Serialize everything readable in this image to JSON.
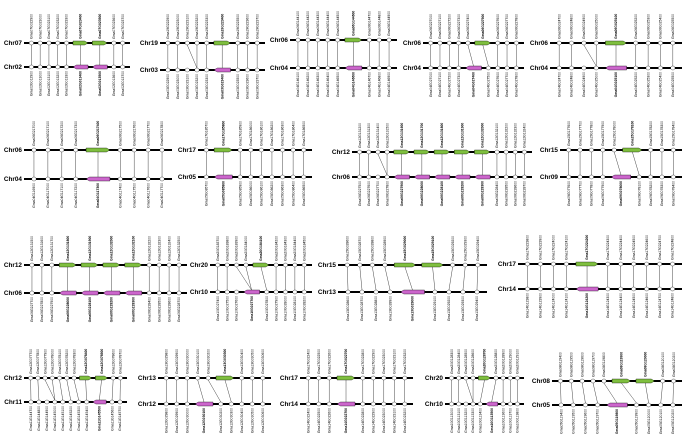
{
  "figure": {
    "colors": {
      "top_focal": "#7fbf3f",
      "bottom_focal": "#cc66cc",
      "other_gene": "#ffffff",
      "chromosome": "#000000"
    },
    "panels": [
      {
        "top_chr": "Chr07",
        "bottom_chr": "Chr02",
        "top_genes": [
          "Gma07G022900",
          "Gma07G023000",
          "Gma07G023100",
          "Gma07G023200",
          "Gma07G023300",
          "Gma07G023400",
          "Gma07G023500",
          "Gma07G023600",
          "Gma07G023700"
        ],
        "bottom_genes": [
          "Gma02G012900",
          "Gma02G013000",
          "Gma02G013100",
          "Gma02G013200",
          "Gma02G013300",
          "Gma02G013400",
          "Gma02G013500",
          "Gma02G013600",
          "Gma02G013700"
        ]
      },
      {
        "top_chr": "Chr19",
        "bottom_chr": "Chr03",
        "top_genes": [
          "Gma19G222900",
          "Gma19G223000",
          "Gma19G223100",
          "Gma19G223200",
          "Gma19G223300",
          "Gma19G223400",
          "Gma19G223500",
          "Gma19G223600",
          "Gma19G223700"
        ],
        "bottom_genes": [
          "Gma03G022900",
          "Gma03G023000",
          "Gma03G023100",
          "Gma03G023200",
          "Gma03G023300",
          "Gma03G023400",
          "Gma03G023500",
          "Gma03G023600",
          "Gma03G023700"
        ]
      },
      {
        "top_chr": "Chr06",
        "bottom_chr": "Chr04",
        "top_genes": [
          "Gma06G144100",
          "Gma06G144200",
          "Gma06G144300",
          "Gma06G144400",
          "Gma06G144500",
          "Gma06G144600",
          "Gma06G144700",
          "Gma06G144800",
          "Gma06G144900"
        ],
        "bottom_genes": [
          "Gma04G146100",
          "Gma04G146200",
          "Gma04G146300",
          "Gma04G146400",
          "Gma04G146500",
          "Gma04G146600",
          "Gma04G146700",
          "Gma04G146800",
          "Gma04G146900"
        ]
      },
      {
        "top_chr": "Chr06",
        "bottom_chr": "Chr04",
        "top_genes": [
          "Gma06G227000",
          "Gma06G227100",
          "Gma06G227200",
          "Gma06G227300",
          "Gma06G227400",
          "Gma06G227500",
          "Gma06G227600",
          "Gma06G227700",
          "Gma06G227800"
        ],
        "bottom_genes": [
          "Gma04G027000",
          "Gma04G027100",
          "Gma04G027200",
          "Gma04G027300",
          "Gma04G027400",
          "Gma04G027500",
          "Gma04G027600",
          "Gma04G027700",
          "Gma04G027800"
        ]
      },
      {
        "top_chr": "Chr06",
        "bottom_chr": "Chr04",
        "top_genes": [
          "Gma06G024700",
          "Gma06G024800",
          "Gma06G024900",
          "Gma06G025000",
          "Gma06G025100",
          "Gma06G025200",
          "Gma06G025300",
          "Gma06G025400",
          "Gma06G025500"
        ],
        "bottom_genes": [
          "Gma04G024700",
          "Gma04G024800",
          "Gma04G024900",
          "Gma04G025000",
          "Gma04G025100",
          "Gma04G025200",
          "Gma04G025300",
          "Gma04G025400",
          "Gma04G025500"
        ]
      },
      {
        "top_chr": "Chr06",
        "bottom_chr": "Chr04",
        "top_genes": [
          "Gma06G217000",
          "Gma06G217100",
          "Gma06G217200",
          "Gma06G217300",
          "Gma06G217400",
          "Gma06G217500",
          "Gma06G217600",
          "Gma06G217700",
          "Gma06G217800"
        ],
        "bottom_genes": [
          "Gma04G116900",
          "Gma04G117000",
          "Gma04G117100",
          "Gma04G117200",
          "Gma04G117300",
          "Gma04G117400",
          "Gma04G117500",
          "Gma04G117600",
          "Gma04G117700"
        ]
      },
      {
        "top_chr": "Chr17",
        "bottom_chr": "Chr05",
        "top_genes": [
          "Gma17G185700",
          "Gma17G185800",
          "Gma17G185900",
          "Gma17G186000",
          "Gma17G186100",
          "Gma17G186200",
          "Gma17G186300",
          "Gma17G186400",
          "Gma17G186500"
        ],
        "bottom_genes": [
          "Gma05G085700",
          "Gma05G085800",
          "Gma05G085900",
          "Gma05G086000",
          "Gma05G086100",
          "Gma05G086200",
          "Gma05G086300",
          "Gma05G086400",
          "Gma05G086500"
        ]
      },
      {
        "top_chr": "Chr12",
        "bottom_chr": "Chr06",
        "top_genes": [
          "Gma12G131200",
          "Gma12G131300",
          "Gma12G131400",
          "Gma12G131500",
          "Gma12G131600",
          "Gma12G131700",
          "Gma12G131800",
          "Gma12G131900",
          "Gma12G132000",
          "Gma12G132100",
          "Gma12G132200",
          "Gma12G132300",
          "Gma12G132400"
        ],
        "bottom_genes": [
          "Gma06G227500",
          "Gma06G227600",
          "Gma06G227700",
          "Gma06G227800",
          "Gma06G227900",
          "Gma06G228000",
          "Gma06G228100",
          "Gma06G228200",
          "Gma06G228300",
          "Gma06G228400",
          "Gma06G228500",
          "Gma06G228600",
          "Gma06G228700"
        ]
      },
      {
        "top_chr": "Chr15",
        "bottom_chr": "Chr09",
        "top_genes": [
          "Gma15G177600",
          "Gma15G177700",
          "Gma15G177800",
          "Gma15G177900",
          "Gma15G178000",
          "Gma15G178100",
          "Gma15G178200",
          "Gma15G178300",
          "Gma15G178400"
        ],
        "bottom_genes": [
          "Gma09G077600",
          "Gma09G077700",
          "Gma09G077800",
          "Gma09G077900",
          "Gma09G078000",
          "Gma09G078100",
          "Gma09G078200",
          "Gma09G078300",
          "Gma09G078400"
        ]
      },
      {
        "top_chr": "Chr12",
        "bottom_chr": "Chr06",
        "top_genes": [
          "Gma12G131500",
          "Gma12G131600",
          "Gma12G131700",
          "Gma12G131800",
          "Gma12G131900",
          "Gma12G132000",
          "Gma12G132100",
          "Gma12G132200",
          "Gma12G132300",
          "Gma12G132400",
          "Gma12G132500"
        ],
        "bottom_genes": [
          "Gma06G227700",
          "Gma06G227800",
          "Gma06G227900",
          "Gma06G228000",
          "Gma06G228100",
          "Gma06G228200",
          "Gma06G228300",
          "Gma06G228400",
          "Gma06G228500",
          "Gma06G228600",
          "Gma06G228700"
        ]
      },
      {
        "top_chr": "Chr20",
        "bottom_chr": "Chr10",
        "top_genes": [
          "Gma20G183700",
          "Gma20G183800",
          "Gma20G183900",
          "Gma20G184000",
          "Gma20G184100",
          "Gma20G184200",
          "Gma20G184300",
          "Gma20G184400",
          "Gma20G184500"
        ],
        "bottom_genes": [
          "Gma10G027400",
          "Gma10G027500",
          "Gma10G027600",
          "Gma10G027700",
          "Gma10G027800",
          "Gma10G027900",
          "Gma10G028000",
          "Gma10G028100",
          "Gma10G028200"
        ]
      },
      {
        "top_chr": "Chr15",
        "bottom_chr": "Chr13",
        "top_genes": [
          "Gma15G028600",
          "Gma15G028700",
          "Gma15G028800",
          "Gma15G028900",
          "Gma15G029000",
          "Gma15G029100",
          "Gma15G029200",
          "Gma15G029300",
          "Gma15G029400"
        ],
        "bottom_genes": [
          "Gma13G028600",
          "Gma13G028700",
          "Gma13G028800",
          "Gma13G028900",
          "Gma13G029000",
          "Gma13G029100",
          "Gma13G029200",
          "Gma13G029300",
          "Gma13G029400"
        ]
      },
      {
        "top_chr": "Chr17",
        "bottom_chr": "Chr14",
        "top_genes": [
          "Gma17G223800",
          "Gma17G223900",
          "Gma17G224000",
          "Gma17G224100",
          "Gma17G224200",
          "Gma17G224300",
          "Gma17G224400",
          "Gma17G224500",
          "Gma17G224600",
          "Gma17G224700",
          "Gma17G224800"
        ],
        "bottom_genes": [
          "Gma14G123800",
          "Gma14G123900",
          "Gma14G124000",
          "Gma14G124100",
          "Gma14G124200",
          "Gma14G124300",
          "Gma14G124400",
          "Gma14G124500",
          "Gma14G124600",
          "Gma14G124700",
          "Gma14G124800"
        ]
      },
      {
        "top_chr": "Chr12",
        "bottom_chr": "Chr11",
        "top_genes": [
          "Gma12G077700",
          "Gma12G077800",
          "Gma12G077900",
          "Gma12G078000",
          "Gma12G078100",
          "Gma12G078200",
          "Gma12G078300",
          "Gma12G078400",
          "Gma12G078500",
          "Gma12G078600",
          "Gma12G078700"
        ],
        "bottom_genes": [
          "Gma11G144700",
          "Gma11G144800",
          "Gma11G144900",
          "Gma11G145000",
          "Gma11G145100",
          "Gma11G145200",
          "Gma11G145300",
          "Gma11G145400",
          "Gma11G145500",
          "Gma11G145600",
          "Gma11G145700"
        ]
      },
      {
        "top_chr": "Chr13",
        "bottom_chr": "Chr12",
        "top_genes": [
          "Gma13G029800",
          "Gma13G029900",
          "Gma13G030000",
          "Gma13G030100",
          "Gma13G030200",
          "Gma13G030300",
          "Gma13G030400",
          "Gma13G030500",
          "Gma13G030600"
        ],
        "bottom_genes": [
          "Gma12G029800",
          "Gma12G029900",
          "Gma12G030000",
          "Gma12G030100",
          "Gma12G030200",
          "Gma12G030300",
          "Gma12G030400",
          "Gma12G030500",
          "Gma12G030600"
        ]
      },
      {
        "top_chr": "Chr17",
        "bottom_chr": "Chr14",
        "top_genes": [
          "Gma17G022400",
          "Gma17G022500",
          "Gma17G022600",
          "Gma17G022700",
          "Gma17G022800",
          "Gma17G022900",
          "Gma17G023000",
          "Gma17G023100",
          "Gma17G023200"
        ],
        "bottom_genes": [
          "Gma14G022400",
          "Gma14G022500",
          "Gma14G022600",
          "Gma14G022700",
          "Gma14G022800",
          "Gma14G022900",
          "Gma14G023000",
          "Gma14G023100",
          "Gma14G023200"
        ]
      },
      {
        "top_chr": "Chr20",
        "bottom_chr": "Chr10",
        "top_genes": [
          "Gma20G128300",
          "Gma20G128400",
          "Gma20G128500",
          "Gma20G128600",
          "Gma20G128700",
          "Gma20G128800",
          "Gma20G128900",
          "Gma20G129000",
          "Gma20G129100"
        ],
        "bottom_genes": [
          "Gma10G113000",
          "Gma10G113100",
          "Gma10G113200",
          "Gma10G113300",
          "Gma10G113400",
          "Gma10G113500",
          "Gma10G113600",
          "Gma10G113700",
          "Gma10G113800"
        ]
      },
      {
        "top_chr": "Chr08",
        "bottom_chr": "Chr05",
        "top_genes": [
          "Gma08G119400",
          "Gma08G119500",
          "Gma08G119600",
          "Gma08G119700",
          "Gma08G119800",
          "Gma08G119900",
          "Gma08G120000",
          "Gma08G120100",
          "Gma08G120200"
        ],
        "bottom_genes": [
          "Gma05G119400",
          "Gma05G119500",
          "Gma05G119600",
          "Gma05G119700",
          "Gma05G119800",
          "Gma05G119900",
          "Gma05G120000",
          "Gma05G120100",
          "Gma05G120200"
        ]
      }
    ]
  }
}
